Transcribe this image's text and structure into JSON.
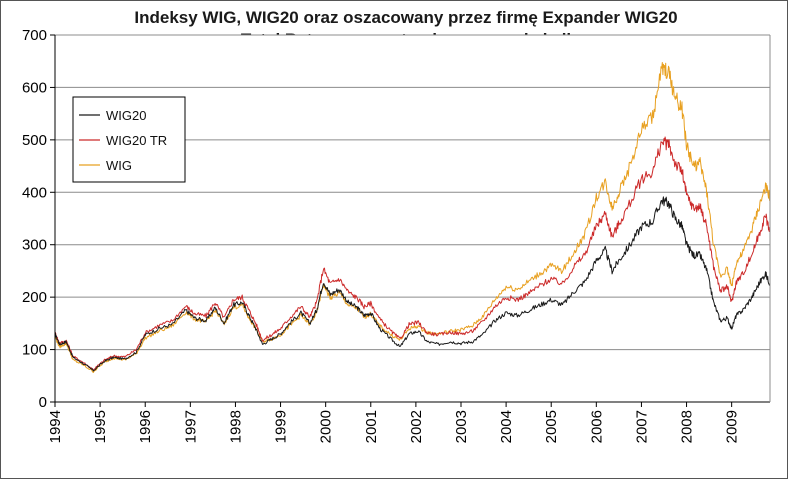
{
  "chart_data": {
    "type": "line",
    "title": "Indeksy WIG, WIG20 oraz oszacowany przez firmę Expander WIG20",
    "subtitle": "Total Return na wystandaryzowanej skali",
    "xlabel": "",
    "ylabel": "",
    "xlim": [
      1994.0,
      2009.85
    ],
    "ylim": [
      0,
      700
    ],
    "x_ticks": [
      "1994",
      "1995",
      "1996",
      "1997",
      "1998",
      "1999",
      "2000",
      "2001",
      "2002",
      "2003",
      "2004",
      "2005",
      "2006",
      "2007",
      "2008",
      "2009"
    ],
    "y_ticks": [
      "0",
      "100",
      "200",
      "300",
      "400",
      "500",
      "600",
      "700"
    ],
    "grid": "horizontal",
    "legend": "top-left",
    "series": [
      {
        "name": "WIG20",
        "color": "#1a1a1a",
        "points": [
          [
            1994.0,
            130
          ],
          [
            1994.1,
            110
          ],
          [
            1994.25,
            115
          ],
          [
            1994.4,
            85
          ],
          [
            1994.6,
            75
          ],
          [
            1994.85,
            60
          ],
          [
            1995.1,
            78
          ],
          [
            1995.3,
            85
          ],
          [
            1995.55,
            82
          ],
          [
            1995.8,
            95
          ],
          [
            1996.0,
            128
          ],
          [
            1996.3,
            140
          ],
          [
            1996.6,
            148
          ],
          [
            1996.9,
            175
          ],
          [
            1997.1,
            160
          ],
          [
            1997.35,
            155
          ],
          [
            1997.55,
            180
          ],
          [
            1997.75,
            150
          ],
          [
            1997.95,
            185
          ],
          [
            1998.15,
            190
          ],
          [
            1998.3,
            165
          ],
          [
            1998.45,
            140
          ],
          [
            1998.6,
            110
          ],
          [
            1998.8,
            120
          ],
          [
            1999.0,
            130
          ],
          [
            1999.2,
            150
          ],
          [
            1999.45,
            170
          ],
          [
            1999.65,
            150
          ],
          [
            1999.8,
            175
          ],
          [
            1999.95,
            230
          ],
          [
            2000.1,
            205
          ],
          [
            2000.3,
            215
          ],
          [
            2000.5,
            190
          ],
          [
            2000.7,
            180
          ],
          [
            2000.85,
            165
          ],
          [
            2001.0,
            170
          ],
          [
            2001.2,
            140
          ],
          [
            2001.45,
            120
          ],
          [
            2001.65,
            105
          ],
          [
            2001.85,
            130
          ],
          [
            2002.05,
            135
          ],
          [
            2002.25,
            115
          ],
          [
            2002.5,
            110
          ],
          [
            2002.75,
            115
          ],
          [
            2003.0,
            112
          ],
          [
            2003.25,
            115
          ],
          [
            2003.5,
            130
          ],
          [
            2003.75,
            155
          ],
          [
            2004.0,
            170
          ],
          [
            2004.25,
            165
          ],
          [
            2004.5,
            175
          ],
          [
            2004.75,
            185
          ],
          [
            2005.0,
            195
          ],
          [
            2005.25,
            185
          ],
          [
            2005.5,
            210
          ],
          [
            2005.75,
            230
          ],
          [
            2006.0,
            270
          ],
          [
            2006.2,
            290
          ],
          [
            2006.35,
            250
          ],
          [
            2006.5,
            270
          ],
          [
            2006.75,
            300
          ],
          [
            2007.0,
            335
          ],
          [
            2007.25,
            345
          ],
          [
            2007.45,
            385
          ],
          [
            2007.6,
            380
          ],
          [
            2007.75,
            350
          ],
          [
            2007.9,
            335
          ],
          [
            2008.0,
            300
          ],
          [
            2008.15,
            280
          ],
          [
            2008.3,
            280
          ],
          [
            2008.45,
            250
          ],
          [
            2008.6,
            190
          ],
          [
            2008.75,
            155
          ],
          [
            2008.9,
            160
          ],
          [
            2009.0,
            140
          ],
          [
            2009.1,
            165
          ],
          [
            2009.25,
            175
          ],
          [
            2009.45,
            200
          ],
          [
            2009.6,
            225
          ],
          [
            2009.75,
            245
          ],
          [
            2009.85,
            225
          ]
        ]
      },
      {
        "name": "WIG20 TR",
        "color": "#cc2a2a",
        "points": [
          [
            1994.0,
            132
          ],
          [
            1994.1,
            112
          ],
          [
            1994.25,
            117
          ],
          [
            1994.4,
            87
          ],
          [
            1994.6,
            77
          ],
          [
            1994.85,
            62
          ],
          [
            1995.1,
            80
          ],
          [
            1995.3,
            88
          ],
          [
            1995.55,
            86
          ],
          [
            1995.8,
            100
          ],
          [
            1996.0,
            132
          ],
          [
            1996.3,
            146
          ],
          [
            1996.6,
            155
          ],
          [
            1996.9,
            183
          ],
          [
            1997.1,
            168
          ],
          [
            1997.35,
            164
          ],
          [
            1997.55,
            190
          ],
          [
            1997.75,
            160
          ],
          [
            1997.95,
            195
          ],
          [
            1998.15,
            200
          ],
          [
            1998.3,
            175
          ],
          [
            1998.45,
            150
          ],
          [
            1998.6,
            118
          ],
          [
            1998.8,
            128
          ],
          [
            1999.0,
            140
          ],
          [
            1999.2,
            160
          ],
          [
            1999.45,
            182
          ],
          [
            1999.65,
            162
          ],
          [
            1999.8,
            190
          ],
          [
            1999.95,
            255
          ],
          [
            2000.1,
            225
          ],
          [
            2000.3,
            235
          ],
          [
            2000.5,
            210
          ],
          [
            2000.7,
            198
          ],
          [
            2000.85,
            182
          ],
          [
            2001.0,
            188
          ],
          [
            2001.2,
            158
          ],
          [
            2001.45,
            135
          ],
          [
            2001.65,
            120
          ],
          [
            2001.85,
            148
          ],
          [
            2002.05,
            152
          ],
          [
            2002.25,
            132
          ],
          [
            2002.5,
            128
          ],
          [
            2002.75,
            133
          ],
          [
            2003.0,
            130
          ],
          [
            2003.25,
            135
          ],
          [
            2003.5,
            155
          ],
          [
            2003.75,
            182
          ],
          [
            2004.0,
            200
          ],
          [
            2004.25,
            195
          ],
          [
            2004.5,
            207
          ],
          [
            2004.75,
            222
          ],
          [
            2005.0,
            235
          ],
          [
            2005.25,
            225
          ],
          [
            2005.5,
            258
          ],
          [
            2005.75,
            282
          ],
          [
            2006.0,
            335
          ],
          [
            2006.2,
            360
          ],
          [
            2006.35,
            315
          ],
          [
            2006.5,
            340
          ],
          [
            2006.75,
            380
          ],
          [
            2007.0,
            425
          ],
          [
            2007.25,
            440
          ],
          [
            2007.45,
            495
          ],
          [
            2007.6,
            492
          ],
          [
            2007.75,
            455
          ],
          [
            2007.9,
            440
          ],
          [
            2008.0,
            395
          ],
          [
            2008.15,
            370
          ],
          [
            2008.3,
            372
          ],
          [
            2008.45,
            335
          ],
          [
            2008.6,
            258
          ],
          [
            2008.75,
            212
          ],
          [
            2008.9,
            220
          ],
          [
            2009.0,
            190
          ],
          [
            2009.1,
            228
          ],
          [
            2009.25,
            245
          ],
          [
            2009.45,
            282
          ],
          [
            2009.6,
            318
          ],
          [
            2009.75,
            355
          ],
          [
            2009.85,
            325
          ]
        ]
      },
      {
        "name": "WIG",
        "color": "#e8a020",
        "points": [
          [
            1994.0,
            125
          ],
          [
            1994.1,
            105
          ],
          [
            1994.25,
            112
          ],
          [
            1994.4,
            80
          ],
          [
            1994.6,
            72
          ],
          [
            1994.85,
            58
          ],
          [
            1995.1,
            76
          ],
          [
            1995.3,
            84
          ],
          [
            1995.55,
            80
          ],
          [
            1995.8,
            92
          ],
          [
            1996.0,
            122
          ],
          [
            1996.3,
            135
          ],
          [
            1996.6,
            145
          ],
          [
            1996.9,
            172
          ],
          [
            1997.1,
            158
          ],
          [
            1997.35,
            152
          ],
          [
            1997.55,
            175
          ],
          [
            1997.75,
            148
          ],
          [
            1997.95,
            180
          ],
          [
            1998.15,
            185
          ],
          [
            1998.3,
            160
          ],
          [
            1998.45,
            140
          ],
          [
            1998.6,
            115
          ],
          [
            1998.8,
            120
          ],
          [
            1999.0,
            128
          ],
          [
            1999.2,
            145
          ],
          [
            1999.45,
            165
          ],
          [
            1999.65,
            148
          ],
          [
            1999.8,
            170
          ],
          [
            1999.95,
            225
          ],
          [
            2000.1,
            198
          ],
          [
            2000.3,
            208
          ],
          [
            2000.5,
            185
          ],
          [
            2000.7,
            178
          ],
          [
            2000.85,
            162
          ],
          [
            2001.0,
            168
          ],
          [
            2001.2,
            145
          ],
          [
            2001.45,
            128
          ],
          [
            2001.65,
            118
          ],
          [
            2001.85,
            140
          ],
          [
            2002.05,
            145
          ],
          [
            2002.25,
            132
          ],
          [
            2002.5,
            130
          ],
          [
            2002.75,
            135
          ],
          [
            2003.0,
            138
          ],
          [
            2003.25,
            145
          ],
          [
            2003.5,
            165
          ],
          [
            2003.75,
            195
          ],
          [
            2004.0,
            220
          ],
          [
            2004.25,
            215
          ],
          [
            2004.5,
            230
          ],
          [
            2004.75,
            245
          ],
          [
            2005.0,
            260
          ],
          [
            2005.25,
            250
          ],
          [
            2005.5,
            285
          ],
          [
            2005.75,
            320
          ],
          [
            2006.0,
            390
          ],
          [
            2006.2,
            420
          ],
          [
            2006.35,
            370
          ],
          [
            2006.5,
            400
          ],
          [
            2006.75,
            450
          ],
          [
            2007.0,
            520
          ],
          [
            2007.25,
            545
          ],
          [
            2007.45,
            635
          ],
          [
            2007.6,
            630
          ],
          [
            2007.75,
            580
          ],
          [
            2007.9,
            560
          ],
          [
            2008.0,
            490
          ],
          [
            2008.15,
            450
          ],
          [
            2008.3,
            455
          ],
          [
            2008.45,
            400
          ],
          [
            2008.6,
            300
          ],
          [
            2008.75,
            240
          ],
          [
            2008.9,
            255
          ],
          [
            2009.0,
            220
          ],
          [
            2009.1,
            265
          ],
          [
            2009.25,
            285
          ],
          [
            2009.45,
            330
          ],
          [
            2009.6,
            370
          ],
          [
            2009.75,
            410
          ],
          [
            2009.85,
            390
          ]
        ]
      }
    ]
  }
}
